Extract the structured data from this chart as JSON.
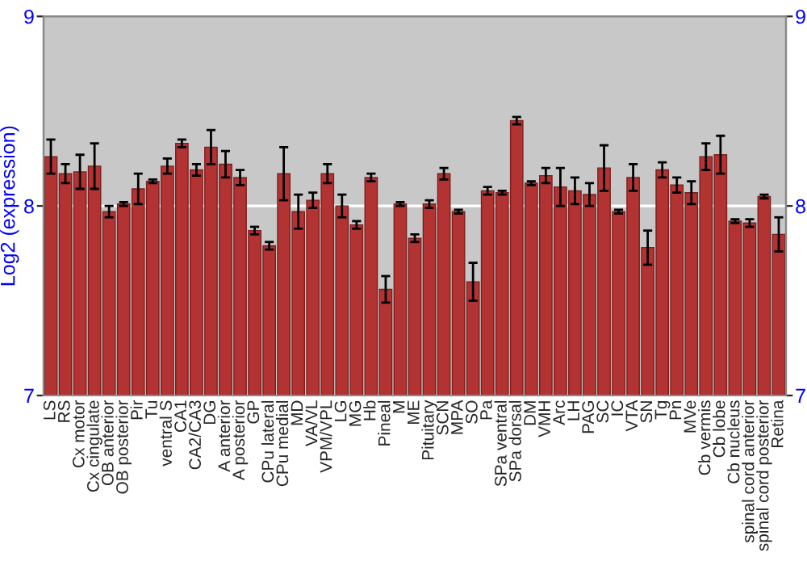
{
  "chart_data": {
    "type": "bar",
    "ylabel": "Log2 (expression)",
    "categories": [
      "LS",
      "RS",
      "Cx motor",
      "Cx cingulate",
      "OB anterior",
      "OB posterior",
      "Pir",
      "Tu",
      "ventral S",
      "CA1",
      "CA2/CA3",
      "DG",
      "A anterior",
      "A posterior",
      "GP",
      "CPu lateral",
      "CPu medial",
      "MD",
      "VA/VL",
      "VPM/VPL",
      "LG",
      "MG",
      "Hb",
      "Pineal",
      "M",
      "ME",
      "Pituitary",
      "SCN",
      "MPA",
      "SO",
      "Pa",
      "SPa ventral",
      "SPa dorsal",
      "DM",
      "VMH",
      "Arc",
      "LH",
      "PAG",
      "SC",
      "IC",
      "VTA",
      "SN",
      "Tg",
      "Pn",
      "MVe",
      "Cb vermis",
      "Cb lobe",
      "Cb nucleus",
      "spinal cord anterior",
      "spinal cord posterior",
      "Retina"
    ],
    "values": [
      8.26,
      8.17,
      8.18,
      8.21,
      7.97,
      8.01,
      8.09,
      8.13,
      8.21,
      8.33,
      8.19,
      8.31,
      8.22,
      8.15,
      7.87,
      7.79,
      8.17,
      7.97,
      8.03,
      8.17,
      8.0,
      7.9,
      8.15,
      7.56,
      8.01,
      7.83,
      8.01,
      8.17,
      7.97,
      7.6,
      8.08,
      8.07,
      8.45,
      8.12,
      8.16,
      8.1,
      8.08,
      8.06,
      8.2,
      7.97,
      8.15,
      7.78,
      8.19,
      8.11,
      8.07,
      8.26,
      8.27,
      7.92,
      7.91,
      8.05,
      7.85
    ],
    "errors": [
      0.09,
      0.05,
      0.09,
      0.12,
      0.03,
      0.01,
      0.08,
      0.01,
      0.04,
      0.02,
      0.03,
      0.09,
      0.07,
      0.04,
      0.02,
      0.02,
      0.14,
      0.09,
      0.04,
      0.05,
      0.06,
      0.02,
      0.02,
      0.07,
      0.01,
      0.02,
      0.02,
      0.03,
      0.01,
      0.1,
      0.02,
      0.01,
      0.02,
      0.01,
      0.04,
      0.1,
      0.07,
      0.06,
      0.12,
      0.01,
      0.07,
      0.09,
      0.04,
      0.04,
      0.06,
      0.07,
      0.1,
      0.01,
      0.02,
      0.01,
      0.09
    ],
    "color": "#b33333",
    "ylim": [
      7,
      9
    ],
    "yticks": [
      7,
      8,
      9
    ],
    "y2lim": [
      7,
      9
    ],
    "y2ticks": [
      7,
      8,
      9
    ],
    "grid": "y"
  }
}
